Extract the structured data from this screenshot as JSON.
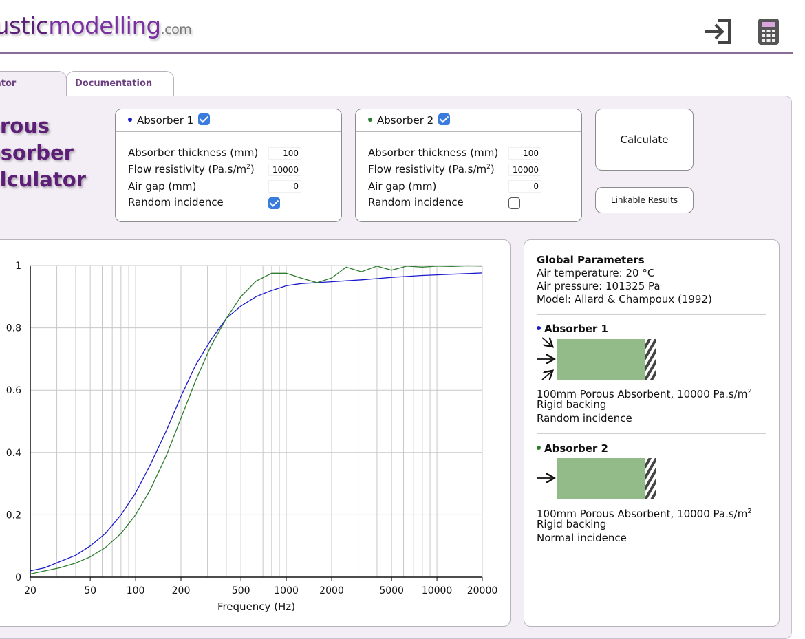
{
  "header": {
    "logo_main": "usticmodelling",
    "logo_part1": "ustic",
    "logo_part2": "modelling",
    "logo_suffix": ".com",
    "icons": [
      "login-icon",
      "calculator-icon"
    ]
  },
  "tabs": [
    {
      "label": "ator",
      "active": true
    },
    {
      "label": "Documentation",
      "active": false
    }
  ],
  "title": {
    "line1": "orous",
    "line2": "bsorber",
    "line3": "alculator"
  },
  "absorber1": {
    "label": "Absorber 1",
    "enabled": true,
    "color": "#1a1acc",
    "thickness_label": "Absorber thickness (mm)",
    "thickness_value": "100",
    "flow_label_pre": "Flow resistivity (Pa.s/m",
    "flow_label_sup": "2",
    "flow_label_post": ")",
    "flow_value": "10000",
    "airgap_label": "Air gap (mm)",
    "airgap_value": "0",
    "random_label": "Random incidence",
    "random_checked": true
  },
  "absorber2": {
    "label": "Absorber 2",
    "enabled": true,
    "color": "#2e7d2e",
    "thickness_label": "Absorber thickness (mm)",
    "thickness_value": "100",
    "flow_label_pre": "Flow resistivity (Pa.s/m",
    "flow_label_sup": "2",
    "flow_label_post": ")",
    "flow_value": "10000",
    "airgap_label": "Air gap (mm)",
    "airgap_value": "0",
    "random_label": "Random incidence",
    "random_checked": false
  },
  "buttons": {
    "calculate": "Calculate",
    "linkable": "Linkable Results"
  },
  "info": {
    "global_title": "Global Parameters",
    "air_temperature": "Air temperature: 20 °C",
    "air_pressure": "Air pressure: 101325 Pa",
    "model": "Model: Allard & Champoux (1992)",
    "abs1_title": "Absorber 1",
    "abs1_desc_pre": "100mm Porous Absorbent, 10000 Pa.s/m",
    "abs1_desc_sup": "2",
    "abs1_backing": "Rigid backing",
    "abs1_incidence": "Random incidence",
    "abs2_title": "Absorber 2",
    "abs2_desc_pre": "100mm Porous Absorbent, 10000 Pa.s/m",
    "abs2_desc_sup": "2",
    "abs2_backing": "Rigid backing",
    "abs2_incidence": "Normal incidence",
    "absorber_fill": "#93bb8a"
  },
  "chart_data": {
    "type": "line",
    "xscale": "log",
    "xlabel": "Frequency (Hz)",
    "ylabel": "",
    "xlim": [
      20,
      20000
    ],
    "ylim": [
      0,
      1
    ],
    "x_tick_labels": [
      "20",
      "50",
      "100",
      "200",
      "500",
      "1000",
      "2000",
      "5000",
      "10000",
      "20000"
    ],
    "y_tick_labels": [
      "0",
      "0.2",
      "0.4",
      "0.6",
      "0.8",
      "1"
    ],
    "grid": true,
    "series": [
      {
        "color": "#1a1acc",
        "x": [
          20,
          25,
          31.5,
          40,
          50,
          63,
          80,
          100,
          125,
          160,
          200,
          250,
          315,
          400,
          500,
          630,
          800,
          1000,
          1250,
          1600,
          2000,
          2500,
          3150,
          4000,
          5000,
          6300,
          8000,
          10000,
          12500,
          16000,
          20000
        ],
        "y": [
          0.02,
          0.03,
          0.05,
          0.07,
          0.1,
          0.14,
          0.2,
          0.27,
          0.36,
          0.47,
          0.58,
          0.68,
          0.76,
          0.83,
          0.87,
          0.9,
          0.92,
          0.935,
          0.942,
          0.945,
          0.948,
          0.951,
          0.954,
          0.958,
          0.962,
          0.965,
          0.968,
          0.97,
          0.972,
          0.974,
          0.976
        ]
      },
      {
        "color": "#2e7d2e",
        "x": [
          20,
          25,
          31.5,
          40,
          50,
          63,
          80,
          100,
          125,
          160,
          200,
          250,
          315,
          400,
          500,
          630,
          800,
          1000,
          1250,
          1600,
          2000,
          2500,
          3150,
          4000,
          5000,
          6300,
          8000,
          10000,
          12500,
          16000,
          20000
        ],
        "y": [
          0.01,
          0.02,
          0.03,
          0.045,
          0.065,
          0.095,
          0.14,
          0.2,
          0.28,
          0.39,
          0.51,
          0.63,
          0.74,
          0.83,
          0.9,
          0.95,
          0.975,
          0.975,
          0.96,
          0.945,
          0.96,
          0.995,
          0.98,
          0.998,
          0.985,
          0.998,
          0.995,
          0.998,
          0.997,
          0.999,
          0.998
        ]
      }
    ]
  }
}
